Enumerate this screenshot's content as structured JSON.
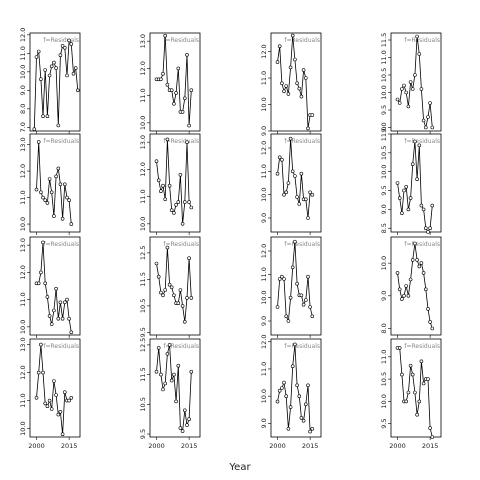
{
  "chart_data": {
    "type": "line",
    "layout": "4x4 small multiples",
    "xlabel": "Year",
    "x_range": [
      1997,
      2020
    ],
    "x_ticks": [
      2000,
      2015
    ],
    "panel_label": "f=Residuals",
    "marker": "open-circle",
    "line_color": "#000000",
    "panels": [
      {
        "row": 1,
        "col": 1,
        "label": "f=Residuals",
        "ylim": [
          6.8,
          12.1
        ],
        "yticks": [
          7,
          8,
          9,
          10,
          11,
          12
        ],
        "x": [
          1999,
          2000,
          2001,
          2002,
          2003,
          2004,
          2005,
          2006,
          2007,
          2008,
          2009,
          2010,
          2011,
          2012,
          2013,
          2014,
          2015,
          2016,
          2017,
          2018,
          2019
        ],
        "values": [
          6.9,
          10.8,
          11.1,
          9.6,
          7.6,
          10.1,
          7.6,
          9.8,
          10.3,
          10.5,
          10.2,
          7.1,
          10.9,
          11.4,
          11.3,
          9.8,
          11.7,
          11.5,
          9.9,
          10.2,
          9.0
        ]
      },
      {
        "row": 1,
        "col": 2,
        "label": "f=Residuals",
        "ylim": [
          9.7,
          13.3
        ],
        "yticks": [
          10,
          11,
          12,
          13
        ],
        "x": [
          2000,
          2001,
          2002,
          2003,
          2004,
          2005,
          2006,
          2007,
          2008,
          2009,
          2010,
          2011,
          2012,
          2013,
          2014,
          2015,
          2016
        ],
        "values": [
          11.6,
          11.6,
          11.6,
          11.8,
          13.2,
          11.4,
          11.2,
          11.2,
          10.7,
          11.1,
          12.0,
          10.4,
          10.4,
          10.9,
          12.5,
          9.9,
          11.2
        ]
      },
      {
        "row": 1,
        "col": 3,
        "label": "f=Residuals",
        "ylim": [
          9.0,
          12.7
        ],
        "yticks": [
          9,
          10,
          11,
          12
        ],
        "x": [
          2000,
          2001,
          2002,
          2003,
          2004,
          2005,
          2006,
          2007,
          2008,
          2009,
          2010,
          2011,
          2012,
          2013,
          2014,
          2015,
          2016
        ],
        "values": [
          11.6,
          12.2,
          10.8,
          10.5,
          10.7,
          10.4,
          11.4,
          12.6,
          11.7,
          10.8,
          10.6,
          10.3,
          11.3,
          11.0,
          9.1,
          9.6,
          9.6
        ]
      },
      {
        "row": 1,
        "col": 4,
        "label": "f=Residuals",
        "ylim": [
          8.9,
          11.7
        ],
        "yticks": [
          9.0,
          9.5,
          10.0,
          10.5,
          11.0,
          11.5
        ],
        "x": [
          2000,
          2001,
          2002,
          2003,
          2004,
          2005,
          2006,
          2007,
          2008,
          2009,
          2010,
          2011,
          2012,
          2013,
          2014,
          2015,
          2016
        ],
        "values": [
          9.8,
          9.7,
          10.1,
          10.2,
          10.0,
          9.6,
          10.3,
          10.1,
          10.5,
          11.6,
          11.1,
          10.1,
          9.2,
          9.0,
          9.3,
          9.7,
          9.0
        ]
      },
      {
        "row": 2,
        "col": 1,
        "label": "f=Residuals",
        "ylim": [
          9.7,
          13.4
        ],
        "yticks": [
          10,
          11,
          12,
          13
        ],
        "x": [
          2000,
          2001,
          2002,
          2003,
          2004,
          2005,
          2006,
          2007,
          2008,
          2009,
          2010,
          2011,
          2012,
          2013,
          2014,
          2015,
          2016
        ],
        "values": [
          11.3,
          13.1,
          11.2,
          11.0,
          10.9,
          10.8,
          11.7,
          11.2,
          10.3,
          11.8,
          12.1,
          11.5,
          10.2,
          11.5,
          11.0,
          10.9,
          10.0
        ]
      },
      {
        "row": 2,
        "col": 2,
        "label": "f=Residuals",
        "ylim": [
          9.7,
          13.3
        ],
        "yticks": [
          10,
          11,
          12,
          13
        ],
        "x": [
          2000,
          2001,
          2002,
          2003,
          2004,
          2005,
          2006,
          2007,
          2008,
          2009,
          2010,
          2011,
          2012,
          2013,
          2014,
          2015,
          2016
        ],
        "values": [
          12.3,
          11.6,
          11.2,
          11.4,
          10.9,
          13.1,
          11.4,
          10.5,
          10.4,
          10.7,
          10.8,
          11.8,
          10.0,
          10.8,
          13.0,
          10.8,
          10.6
        ]
      },
      {
        "row": 2,
        "col": 3,
        "label": "f=Residuals",
        "ylim": [
          8.4,
          12.6
        ],
        "yticks": [
          9,
          10,
          11,
          12
        ],
        "x": [
          2000,
          2001,
          2002,
          2003,
          2004,
          2005,
          2006,
          2007,
          2008,
          2009,
          2010,
          2011,
          2012,
          2013,
          2014,
          2015,
          2016
        ],
        "values": [
          10.9,
          11.6,
          11.5,
          10.0,
          10.1,
          10.5,
          12.4,
          11.0,
          10.8,
          9.9,
          9.6,
          10.9,
          9.8,
          9.8,
          9.0,
          10.1,
          10.0
        ]
      },
      {
        "row": 2,
        "col": 4,
        "label": "f=Residuals",
        "ylim": [
          8.4,
          11.0
        ],
        "yticks": [
          8.5,
          9.0,
          9.5,
          10.0,
          10.5,
          11.0
        ],
        "x": [
          2000,
          2001,
          2002,
          2003,
          2004,
          2005,
          2006,
          2007,
          2008,
          2009,
          2010,
          2011,
          2012,
          2013,
          2014,
          2015,
          2016
        ],
        "values": [
          9.7,
          9.3,
          8.9,
          9.5,
          9.6,
          9.0,
          9.3,
          10.2,
          10.8,
          9.8,
          10.7,
          9.1,
          9.0,
          8.5,
          8.4,
          8.5,
          9.1
        ]
      },
      {
        "row": 3,
        "col": 1,
        "label": "f=Residuals",
        "ylim": [
          9.7,
          13.3
        ],
        "yticks": [
          10,
          11,
          12,
          13
        ],
        "x": [
          2000,
          2001,
          2002,
          2003,
          2004,
          2005,
          2006,
          2007,
          2008,
          2009,
          2010,
          2011,
          2012,
          2013,
          2014,
          2015,
          2016
        ],
        "values": [
          11.6,
          11.6,
          12.0,
          13.1,
          11.6,
          11.1,
          10.4,
          10.1,
          10.6,
          11.4,
          10.3,
          10.9,
          10.3,
          10.9,
          11.0,
          10.3,
          9.8
        ]
      },
      {
        "row": 3,
        "col": 2,
        "label": "f=Residuals",
        "ylim": [
          9.4,
          13.1
        ],
        "yticks": [
          9.5,
          10.5,
          11.5,
          12.5
        ],
        "x": [
          2000,
          2001,
          2002,
          2003,
          2004,
          2005,
          2006,
          2007,
          2008,
          2009,
          2010,
          2011,
          2012,
          2013,
          2014,
          2015,
          2016
        ],
        "values": [
          12.1,
          11.6,
          11.0,
          10.9,
          11.1,
          12.7,
          11.3,
          11.2,
          10.9,
          10.6,
          10.6,
          11.1,
          10.5,
          9.9,
          10.8,
          12.3,
          10.8
        ]
      },
      {
        "row": 3,
        "col": 3,
        "label": "f=Residuals",
        "ylim": [
          8.4,
          12.6
        ],
        "yticks": [
          9,
          10,
          11,
          12
        ],
        "x": [
          2000,
          2001,
          2002,
          2003,
          2004,
          2005,
          2006,
          2007,
          2008,
          2009,
          2010,
          2011,
          2012,
          2013,
          2014,
          2015,
          2016
        ],
        "values": [
          9.6,
          10.8,
          10.9,
          10.8,
          9.2,
          9.0,
          10.0,
          11.3,
          12.4,
          10.6,
          10.1,
          10.1,
          9.7,
          9.9,
          10.9,
          9.6,
          9.2
        ]
      },
      {
        "row": 3,
        "col": 4,
        "label": "f=Residuals",
        "ylim": [
          7.8,
          10.8
        ],
        "yticks": [
          8.0,
          9.0,
          10.0
        ],
        "x": [
          2000,
          2001,
          2002,
          2003,
          2004,
          2005,
          2006,
          2007,
          2008,
          2009,
          2010,
          2011,
          2012,
          2013,
          2014,
          2015,
          2016
        ],
        "values": [
          9.7,
          9.2,
          8.9,
          9.0,
          9.3,
          9.0,
          9.5,
          10.1,
          10.6,
          10.1,
          9.9,
          10.0,
          9.7,
          9.2,
          8.6,
          8.2,
          8.0
        ]
      },
      {
        "row": 4,
        "col": 1,
        "label": "f=Residuals",
        "ylim": [
          9.7,
          13.2
        ],
        "yticks": [
          10,
          11,
          12,
          13
        ],
        "x": [
          2000,
          2001,
          2002,
          2003,
          2004,
          2005,
          2006,
          2007,
          2008,
          2009,
          2010,
          2011,
          2012,
          2013,
          2014,
          2015,
          2016
        ],
        "values": [
          11.1,
          12.0,
          13.0,
          12.0,
          10.9,
          10.8,
          11.0,
          10.7,
          11.7,
          11.2,
          10.5,
          10.6,
          9.8,
          11.3,
          11.0,
          11.0,
          11.1
        ]
      },
      {
        "row": 4,
        "col": 2,
        "label": "f=Residuals",
        "ylim": [
          9.4,
          12.7
        ],
        "yticks": [
          9.5,
          10.5,
          11.5,
          12.5
        ],
        "x": [
          2000,
          2001,
          2002,
          2003,
          2004,
          2005,
          2006,
          2007,
          2008,
          2009,
          2010,
          2011,
          2012,
          2013,
          2014,
          2015,
          2016
        ],
        "values": [
          11.6,
          12.4,
          11.5,
          11.0,
          11.2,
          12.2,
          12.5,
          11.3,
          11.5,
          10.6,
          11.8,
          9.7,
          9.6,
          10.3,
          9.8,
          10.0,
          11.6
        ]
      },
      {
        "row": 4,
        "col": 3,
        "label": "f=Residuals",
        "ylim": [
          8.5,
          12.1
        ],
        "yticks": [
          9,
          10,
          11,
          12
        ],
        "x": [
          2000,
          2001,
          2002,
          2003,
          2004,
          2005,
          2006,
          2007,
          2008,
          2009,
          2010,
          2011,
          2012,
          2013,
          2014,
          2015,
          2016
        ],
        "values": [
          9.8,
          10.2,
          10.3,
          10.5,
          10.0,
          8.8,
          9.6,
          11.1,
          11.9,
          10.4,
          10.0,
          9.2,
          9.1,
          9.7,
          10.4,
          8.7,
          8.8
        ]
      },
      {
        "row": 4,
        "col": 4,
        "label": "f=Residuals",
        "ylim": [
          9.2,
          11.4
        ],
        "yticks": [
          9.5,
          10.0,
          10.5,
          11.0
        ],
        "x": [
          2000,
          2001,
          2002,
          2003,
          2004,
          2005,
          2006,
          2007,
          2008,
          2009,
          2010,
          2011,
          2012,
          2013,
          2014,
          2015,
          2016
        ],
        "values": [
          11.2,
          11.2,
          10.6,
          10.0,
          10.0,
          10.2,
          10.8,
          10.6,
          10.2,
          9.7,
          10.0,
          10.9,
          10.4,
          10.5,
          10.5,
          9.4,
          9.2
        ]
      }
    ]
  }
}
